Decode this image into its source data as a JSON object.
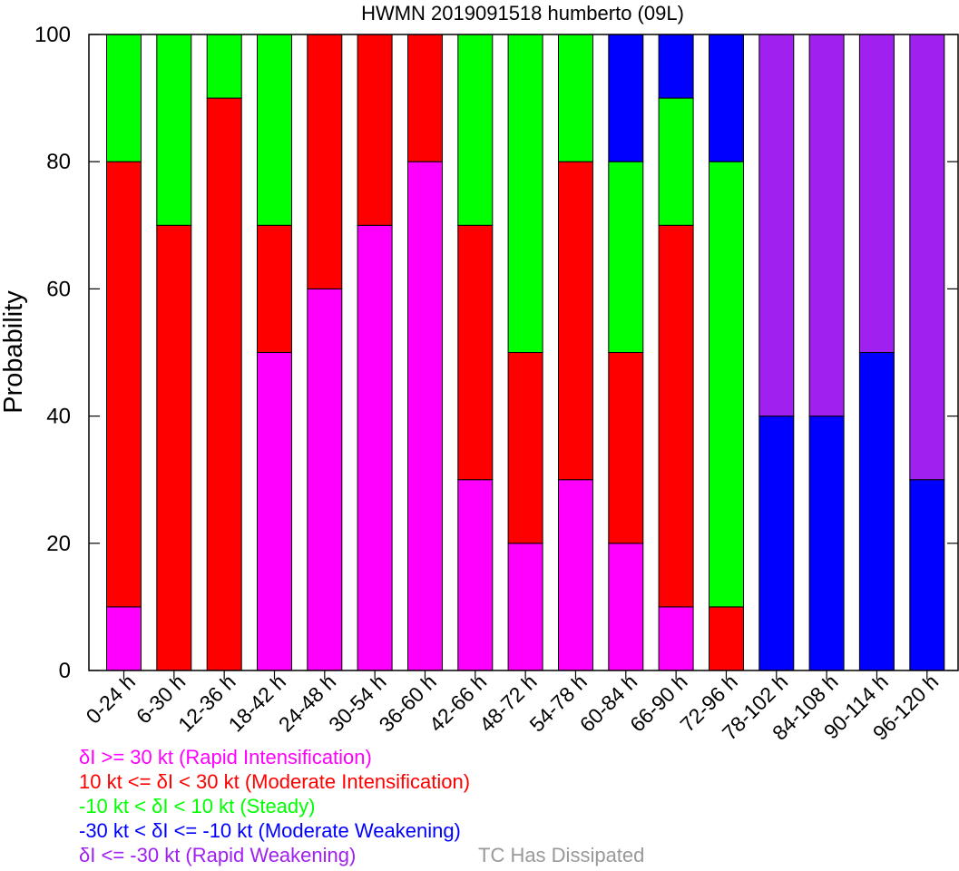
{
  "chart_data": {
    "type": "bar",
    "stacked": true,
    "title": "HWMN 2019091518 humberto (09L)",
    "xlabel": "",
    "ylabel": "Probability",
    "ylim": [
      0,
      100
    ],
    "yticks": [
      0,
      20,
      40,
      60,
      80,
      100
    ],
    "categories": [
      "0-24 h",
      "6-30 h",
      "12-36 h",
      "18-42 h",
      "24-48 h",
      "30-54 h",
      "36-60 h",
      "42-66 h",
      "48-72 h",
      "54-78 h",
      "60-84 h",
      "66-90 h",
      "72-96 h",
      "78-102 h",
      "84-108 h",
      "90-114 h",
      "96-120 h"
    ],
    "series": [
      {
        "name": "δI >= 30 kt (Rapid Intensification)",
        "color": "#ff00ff",
        "values": [
          10,
          0,
          0,
          50,
          60,
          70,
          80,
          30,
          20,
          30,
          20,
          10,
          0,
          0,
          0,
          0,
          0
        ]
      },
      {
        "name": "10 kt <= δI < 30 kt (Moderate Intensification)",
        "color": "#ff0000",
        "values": [
          70,
          70,
          90,
          20,
          40,
          30,
          20,
          40,
          30,
          50,
          30,
          60,
          10,
          0,
          0,
          0,
          0
        ]
      },
      {
        "name": "-10 kt < δI < 10 kt (Steady)",
        "color": "#00ff00",
        "values": [
          20,
          30,
          10,
          30,
          0,
          0,
          0,
          30,
          50,
          20,
          30,
          20,
          70,
          0,
          0,
          0,
          0
        ]
      },
      {
        "name": "-30 kt < δI <= -10 kt (Moderate Weakening)",
        "color": "#0000ff",
        "values": [
          0,
          0,
          0,
          0,
          0,
          0,
          0,
          0,
          0,
          0,
          20,
          10,
          20,
          40,
          40,
          50,
          30
        ]
      },
      {
        "name": "δI <= -30 kt (Rapid Weakening)",
        "color": "#a020f0",
        "values": [
          0,
          0,
          0,
          0,
          0,
          0,
          0,
          0,
          0,
          0,
          0,
          0,
          0,
          60,
          60,
          50,
          70
        ]
      },
      {
        "name": "TC Has Dissipated",
        "color": "#999999",
        "values": [
          0,
          0,
          0,
          0,
          0,
          0,
          0,
          0,
          0,
          0,
          0,
          0,
          0,
          0,
          0,
          0,
          0
        ]
      }
    ],
    "grid": false,
    "legend_position": "bottom"
  }
}
